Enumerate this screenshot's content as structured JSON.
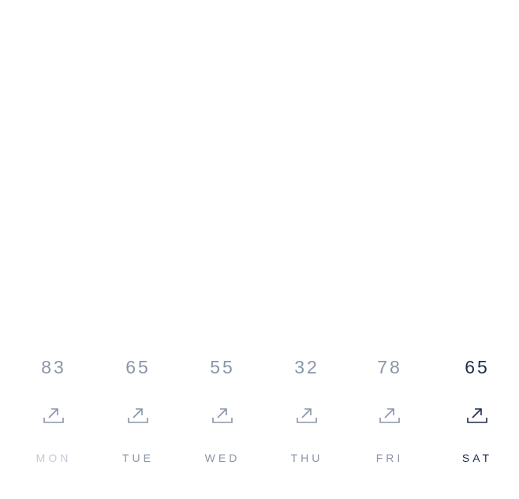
{
  "colors": {
    "text_default": "#8a95a8",
    "text_muted": "#c3cad6",
    "text_active": "#1f2d4d",
    "icon_default": "#8a95a8",
    "icon_active": "#1f2d4d"
  },
  "days": [
    {
      "label": "MON",
      "value": "83",
      "icon": "share-arrow-icon",
      "state": "muted"
    },
    {
      "label": "TUE",
      "value": "65",
      "icon": "share-arrow-icon",
      "state": "default"
    },
    {
      "label": "WED",
      "value": "55",
      "icon": "share-arrow-icon",
      "state": "default"
    },
    {
      "label": "THU",
      "value": "32",
      "icon": "share-arrow-icon",
      "state": "default"
    },
    {
      "label": "FRI",
      "value": "78",
      "icon": "share-arrow-icon",
      "state": "default"
    },
    {
      "label": "SAT",
      "value": "65",
      "icon": "share-arrow-icon",
      "state": "active"
    }
  ]
}
